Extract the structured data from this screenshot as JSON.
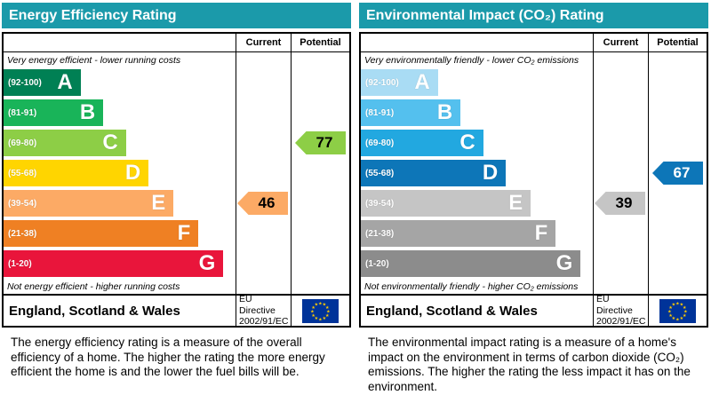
{
  "theme": {
    "header_bg": "#1b9aaa",
    "header_text": "#ffffff",
    "border_color": "#000000"
  },
  "chart_data": [
    {
      "type": "bar",
      "title": "Energy Efficiency Rating",
      "categories": [
        "A",
        "B",
        "C",
        "D",
        "E",
        "F",
        "G"
      ],
      "band_ranges": [
        "92-100",
        "81-91",
        "69-80",
        "55-68",
        "39-54",
        "21-38",
        "1-20"
      ],
      "scale": [
        1,
        100
      ],
      "current": {
        "value": 46,
        "band": "E"
      },
      "potential": {
        "value": 77,
        "band": "C"
      },
      "legend_position": "none",
      "grid": false
    },
    {
      "type": "bar",
      "title": "Environmental Impact (CO₂) Rating",
      "categories": [
        "A",
        "B",
        "C",
        "D",
        "E",
        "F",
        "G"
      ],
      "band_ranges": [
        "92-100",
        "81-91",
        "69-80",
        "55-68",
        "39-54",
        "21-38",
        "1-20"
      ],
      "scale": [
        1,
        100
      ],
      "current": {
        "value": 39,
        "band": "E"
      },
      "potential": {
        "value": 67,
        "band": "D"
      },
      "legend_position": "none",
      "grid": false
    }
  ],
  "panels": [
    {
      "title": "Energy Efficiency Rating",
      "columns": {
        "current": "Current",
        "potential": "Potential"
      },
      "top_caption": "Very energy efficient - lower running costs",
      "bottom_caption": "Not energy efficient - higher running costs",
      "bands": [
        {
          "letter": "A",
          "range": "(92-100)",
          "color": "#008054",
          "width_pct": 34
        },
        {
          "letter": "B",
          "range": "(81-91)",
          "color": "#19b459",
          "width_pct": 44
        },
        {
          "letter": "C",
          "range": "(69-80)",
          "color": "#8dce46",
          "width_pct": 54
        },
        {
          "letter": "D",
          "range": "(55-68)",
          "color": "#ffd500",
          "width_pct": 64
        },
        {
          "letter": "E",
          "range": "(39-54)",
          "color": "#fcaa65",
          "width_pct": 75
        },
        {
          "letter": "F",
          "range": "(21-38)",
          "color": "#ef8023",
          "width_pct": 86
        },
        {
          "letter": "G",
          "range": "(1-20)",
          "color": "#e9153b",
          "width_pct": 97
        }
      ],
      "current": {
        "value": "46",
        "band_index": 4,
        "color": "#fcaa65",
        "text_color": "#000000"
      },
      "potential": {
        "value": "77",
        "band_index": 2,
        "color": "#8dce46",
        "text_color": "#000000"
      },
      "footer": {
        "region": "England, Scotland & Wales",
        "directive_line1": "EU Directive",
        "directive_line2": "2002/91/EC",
        "flag_icon": "eu-flag",
        "flag_colors": {
          "field": "#003399",
          "stars": "#ffcc00"
        }
      },
      "description": "The energy efficiency rating is a measure of the overall efficiency of a home. The higher the rating the more energy efficient the home is and the lower the fuel bills will be."
    },
    {
      "title": "Environmental Impact (CO₂) Rating",
      "columns": {
        "current": "Current",
        "potential": "Potential"
      },
      "top_caption": "Very environmentally friendly - lower CO₂ emissions",
      "bottom_caption": "Not environmentally friendly - higher CO₂ emissions",
      "bands": [
        {
          "letter": "A",
          "range": "(92-100)",
          "color": "#a9dcf4",
          "width_pct": 34
        },
        {
          "letter": "B",
          "range": "(81-91)",
          "color": "#54c0ee",
          "width_pct": 44
        },
        {
          "letter": "C",
          "range": "(69-80)",
          "color": "#22a8e0",
          "width_pct": 54
        },
        {
          "letter": "D",
          "range": "(55-68)",
          "color": "#0d76b8",
          "width_pct": 64
        },
        {
          "letter": "E",
          "range": "(39-54)",
          "color": "#c5c5c5",
          "width_pct": 75
        },
        {
          "letter": "F",
          "range": "(21-38)",
          "color": "#a5a5a5",
          "width_pct": 86
        },
        {
          "letter": "G",
          "range": "(1-20)",
          "color": "#8c8c8c",
          "width_pct": 97
        }
      ],
      "current": {
        "value": "39",
        "band_index": 4,
        "color": "#c5c5c5",
        "text_color": "#000000"
      },
      "potential": {
        "value": "67",
        "band_index": 3,
        "color": "#0d76b8",
        "text_color": "#ffffff"
      },
      "footer": {
        "region": "England, Scotland & Wales",
        "directive_line1": "EU Directive",
        "directive_line2": "2002/91/EC",
        "flag_icon": "eu-flag",
        "flag_colors": {
          "field": "#003399",
          "stars": "#ffcc00"
        }
      },
      "description": "The environmental impact rating is a measure of a home's impact on the environment in terms of carbon dioxide (CO₂) emissions. The higher the rating the less impact it has on the environment."
    }
  ]
}
